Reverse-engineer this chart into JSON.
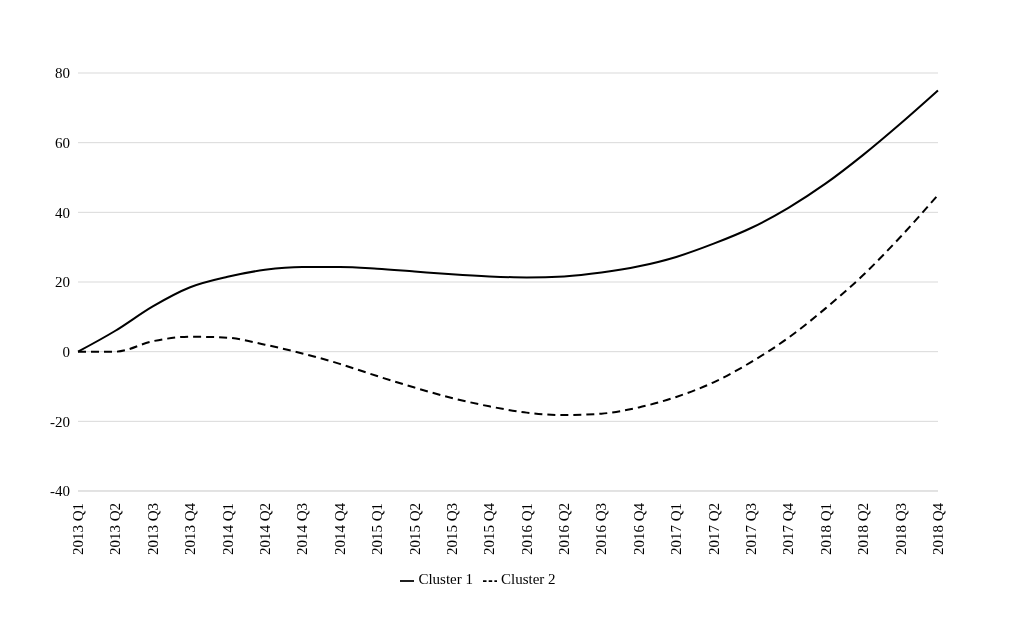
{
  "chart_data": {
    "type": "line",
    "categories": [
      "2013 Q1",
      "2013 Q2",
      "2013 Q3",
      "2013 Q4",
      "2014 Q1",
      "2014 Q2",
      "2014 Q3",
      "2014 Q4",
      "2015 Q1",
      "2015 Q2",
      "2015 Q3",
      "2015 Q4",
      "2016 Q1",
      "2016 Q2",
      "2016 Q3",
      "2016 Q4",
      "2017 Q1",
      "2017 Q2",
      "2017 Q3",
      "2017 Q4",
      "2018 Q1",
      "2018 Q2",
      "2018 Q3",
      "2018 Q4"
    ],
    "series": [
      {
        "name": "Cluster 1",
        "color": "#000000",
        "line_style": "solid",
        "values": [
          0,
          6,
          13,
          18.5,
          21.5,
          23.5,
          24.3,
          24.3,
          23.8,
          23,
          22.2,
          21.6,
          21.3,
          21.6,
          22.7,
          24.5,
          27.2,
          31,
          35.5,
          41.3,
          48.3,
          56.5,
          65.5,
          75
        ]
      },
      {
        "name": "Cluster 2",
        "color": "#000000",
        "line_style": "dashed",
        "values": [
          0,
          0,
          3,
          4.3,
          4,
          2,
          -0.5,
          -3.5,
          -7,
          -10.3,
          -13.3,
          -15.7,
          -17.5,
          -18.2,
          -17.8,
          -16,
          -13,
          -8.8,
          -3,
          4,
          12.5,
          22,
          33,
          45
        ]
      }
    ],
    "ylim": [
      -40,
      80
    ],
    "yticks": [
      -40,
      -20,
      0,
      20,
      40,
      60,
      80
    ],
    "grid": "y",
    "legend": "bottom",
    "marker": "none"
  }
}
